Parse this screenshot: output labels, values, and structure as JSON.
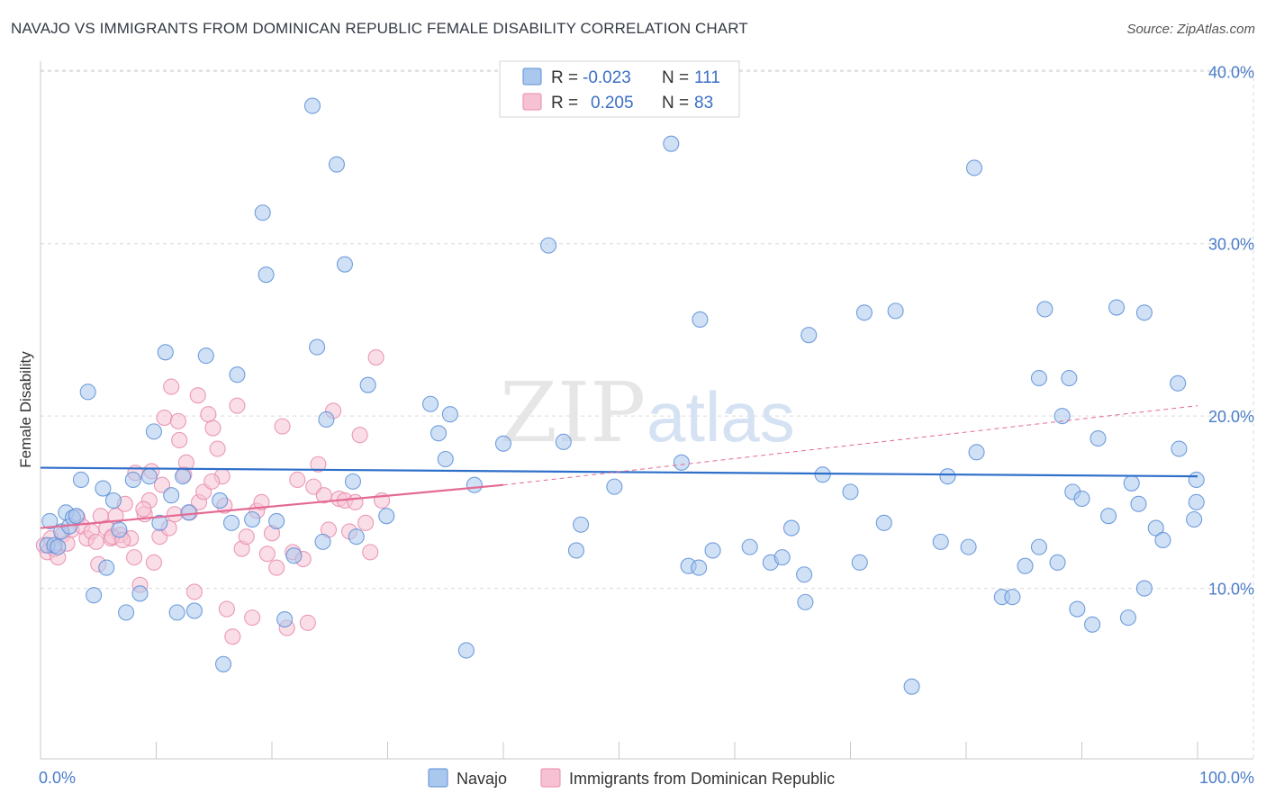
{
  "title": "NAVAJO VS IMMIGRANTS FROM DOMINICAN REPUBLIC FEMALE DISABILITY CORRELATION CHART",
  "source": "Source: ZipAtlas.com",
  "colors": {
    "navajo_fill": "#aac8ee",
    "navajo_stroke": "#5b8ed6",
    "navajo_line": "#2f6fca",
    "dom_fill": "#f6c2d3",
    "dom_stroke": "#e88aaa",
    "dom_line": "#e46a93",
    "grid": "#d9d9d9",
    "tick_label": "#4a7cc9"
  },
  "watermark": {
    "part1": "ZIP",
    "part2": "atlas"
  },
  "legend": {
    "rows": [
      {
        "r_label": "R =",
        "r_value": "-0.023",
        "n_label": "N =",
        "n_value": "111"
      },
      {
        "r_label": "R =",
        "r_value": "0.205",
        "n_label": "N =",
        "n_value": "83"
      }
    ]
  },
  "bottom_legend": [
    "Navajo",
    "Immigrants from Dominican Republic"
  ],
  "chart_data": {
    "type": "scatter",
    "title": "NAVAJO VS IMMIGRANTS FROM DOMINICAN REPUBLIC FEMALE DISABILITY CORRELATION CHART",
    "xlabel": "",
    "ylabel": "Female Disability",
    "xlim": [
      0,
      100
    ],
    "ylim": [
      0,
      42
    ],
    "x_tick_labels": [
      "0.0%",
      "100.0%"
    ],
    "y_ticks": [
      10,
      20,
      30,
      40
    ],
    "y_tick_labels": [
      "10.0%",
      "20.0%",
      "30.0%",
      "40.0%"
    ],
    "grid": true,
    "series": [
      {
        "name": "Navajo",
        "R": -0.023,
        "N": 111,
        "trend": {
          "x": [
            0,
            100
          ],
          "y": [
            17.0,
            16.5
          ]
        },
        "points": [
          [
            0.6,
            12.5
          ],
          [
            0.8,
            13.9
          ],
          [
            1.2,
            12.5
          ],
          [
            1.5,
            12.4
          ],
          [
            1.8,
            13.3
          ],
          [
            2.2,
            14.4
          ],
          [
            2.5,
            13.6
          ],
          [
            2.8,
            14.1
          ],
          [
            3.1,
            14.2
          ],
          [
            3.5,
            16.3
          ],
          [
            4.1,
            21.4
          ],
          [
            4.6,
            9.6
          ],
          [
            5.4,
            15.8
          ],
          [
            5.7,
            11.2
          ],
          [
            6.3,
            15.1
          ],
          [
            6.8,
            13.4
          ],
          [
            7.4,
            8.6
          ],
          [
            8.0,
            16.3
          ],
          [
            8.6,
            9.7
          ],
          [
            9.4,
            16.5
          ],
          [
            9.8,
            19.1
          ],
          [
            10.3,
            13.8
          ],
          [
            10.8,
            23.7
          ],
          [
            11.3,
            15.4
          ],
          [
            11.8,
            8.6
          ],
          [
            12.3,
            16.5
          ],
          [
            12.8,
            14.4
          ],
          [
            13.3,
            8.7
          ],
          [
            14.3,
            23.5
          ],
          [
            15.5,
            15.1
          ],
          [
            15.8,
            5.6
          ],
          [
            16.5,
            13.8
          ],
          [
            17.0,
            22.4
          ],
          [
            18.3,
            14.0
          ],
          [
            19.2,
            31.8
          ],
          [
            19.5,
            28.2
          ],
          [
            20.4,
            13.9
          ],
          [
            21.1,
            8.2
          ],
          [
            21.9,
            11.9
          ],
          [
            23.5,
            38.0
          ],
          [
            23.9,
            24.0
          ],
          [
            24.4,
            12.7
          ],
          [
            24.7,
            19.8
          ],
          [
            25.6,
            34.6
          ],
          [
            26.3,
            28.8
          ],
          [
            27.0,
            16.2
          ],
          [
            27.3,
            13.0
          ],
          [
            28.3,
            21.8
          ],
          [
            29.9,
            14.2
          ],
          [
            33.7,
            20.7
          ],
          [
            34.4,
            19.0
          ],
          [
            35.0,
            17.5
          ],
          [
            35.4,
            20.1
          ],
          [
            36.8,
            6.4
          ],
          [
            37.5,
            16.0
          ],
          [
            40.0,
            18.4
          ],
          [
            43.9,
            29.9
          ],
          [
            45.2,
            18.5
          ],
          [
            46.7,
            13.7
          ],
          [
            46.3,
            12.2
          ],
          [
            49.6,
            15.9
          ],
          [
            54.5,
            35.8
          ],
          [
            55.4,
            17.3
          ],
          [
            56.0,
            11.3
          ],
          [
            56.9,
            11.2
          ],
          [
            58.1,
            12.2
          ],
          [
            57.0,
            25.6
          ],
          [
            61.3,
            12.4
          ],
          [
            63.1,
            11.5
          ],
          [
            64.1,
            11.8
          ],
          [
            64.9,
            13.5
          ],
          [
            66.1,
            9.2
          ],
          [
            66.4,
            24.7
          ],
          [
            66.0,
            10.8
          ],
          [
            67.6,
            16.6
          ],
          [
            70.0,
            15.6
          ],
          [
            70.8,
            11.5
          ],
          [
            71.2,
            26.0
          ],
          [
            72.9,
            13.8
          ],
          [
            73.9,
            26.1
          ],
          [
            75.3,
            4.3
          ],
          [
            77.8,
            12.7
          ],
          [
            78.4,
            16.5
          ],
          [
            80.2,
            12.4
          ],
          [
            80.7,
            34.4
          ],
          [
            80.9,
            17.9
          ],
          [
            83.1,
            9.5
          ],
          [
            84.0,
            9.5
          ],
          [
            85.1,
            11.3
          ],
          [
            86.3,
            22.2
          ],
          [
            86.3,
            12.4
          ],
          [
            86.8,
            26.2
          ],
          [
            87.9,
            11.5
          ],
          [
            88.3,
            20.0
          ],
          [
            88.9,
            22.2
          ],
          [
            89.2,
            15.6
          ],
          [
            89.6,
            8.8
          ],
          [
            90.0,
            15.2
          ],
          [
            90.9,
            7.9
          ],
          [
            91.4,
            18.7
          ],
          [
            92.3,
            14.2
          ],
          [
            93.0,
            26.3
          ],
          [
            94.0,
            8.3
          ],
          [
            94.3,
            16.1
          ],
          [
            94.9,
            14.9
          ],
          [
            95.4,
            26.0
          ],
          [
            95.4,
            10.0
          ],
          [
            96.4,
            13.5
          ],
          [
            97.0,
            12.8
          ],
          [
            98.3,
            21.9
          ],
          [
            98.4,
            18.1
          ],
          [
            99.7,
            14.0
          ],
          [
            99.9,
            16.3
          ],
          [
            99.9,
            15.0
          ]
        ]
      },
      {
        "name": "Immigrants from Dominican Republic",
        "R": 0.205,
        "N": 83,
        "trend": {
          "x": [
            0,
            40
          ],
          "y": [
            13.5,
            16.0
          ]
        },
        "trend_extended": {
          "x": [
            40,
            100
          ],
          "y": [
            16.0,
            20.6
          ]
        },
        "points": [
          [
            0.3,
            12.5
          ],
          [
            0.6,
            12.1
          ],
          [
            0.9,
            12.9
          ],
          [
            1.2,
            12.3
          ],
          [
            1.5,
            11.8
          ],
          [
            1.9,
            13.1
          ],
          [
            2.3,
            12.6
          ],
          [
            2.7,
            13.4
          ],
          [
            3.2,
            14.1
          ],
          [
            3.6,
            13.6
          ],
          [
            4.0,
            12.9
          ],
          [
            4.4,
            13.3
          ],
          [
            4.8,
            12.7
          ],
          [
            5.2,
            14.2
          ],
          [
            5.7,
            13.5
          ],
          [
            6.1,
            12.9
          ],
          [
            6.5,
            14.2
          ],
          [
            6.9,
            13.1
          ],
          [
            7.3,
            14.9
          ],
          [
            7.8,
            12.9
          ],
          [
            8.2,
            16.7
          ],
          [
            8.6,
            10.2
          ],
          [
            9.0,
            14.3
          ],
          [
            9.4,
            15.1
          ],
          [
            9.8,
            11.5
          ],
          [
            10.3,
            13.0
          ],
          [
            10.7,
            19.9
          ],
          [
            11.1,
            13.5
          ],
          [
            11.6,
            14.3
          ],
          [
            12.0,
            18.6
          ],
          [
            12.4,
            16.6
          ],
          [
            12.9,
            14.4
          ],
          [
            13.3,
            9.8
          ],
          [
            13.7,
            15.0
          ],
          [
            14.1,
            15.6
          ],
          [
            14.5,
            20.1
          ],
          [
            14.9,
            19.3
          ],
          [
            15.3,
            18.1
          ],
          [
            15.7,
            16.5
          ],
          [
            16.1,
            8.8
          ],
          [
            16.6,
            7.2
          ],
          [
            17.0,
            20.6
          ],
          [
            17.4,
            12.3
          ],
          [
            17.8,
            13.0
          ],
          [
            18.3,
            8.3
          ],
          [
            18.7,
            14.5
          ],
          [
            19.1,
            15.0
          ],
          [
            19.6,
            12.0
          ],
          [
            20.0,
            13.2
          ],
          [
            20.4,
            11.2
          ],
          [
            20.9,
            19.4
          ],
          [
            21.3,
            7.7
          ],
          [
            21.8,
            12.1
          ],
          [
            22.2,
            16.3
          ],
          [
            22.7,
            11.7
          ],
          [
            23.1,
            8.0
          ],
          [
            23.6,
            15.9
          ],
          [
            24.0,
            17.2
          ],
          [
            24.5,
            15.4
          ],
          [
            24.9,
            13.4
          ],
          [
            25.3,
            20.3
          ],
          [
            25.8,
            15.2
          ],
          [
            26.3,
            15.1
          ],
          [
            26.7,
            13.3
          ],
          [
            27.2,
            15.0
          ],
          [
            27.6,
            18.9
          ],
          [
            28.1,
            13.8
          ],
          [
            28.5,
            12.1
          ],
          [
            29.0,
            23.4
          ],
          [
            29.5,
            15.1
          ],
          [
            5.0,
            11.4
          ],
          [
            6.2,
            13.0
          ],
          [
            7.1,
            12.8
          ],
          [
            8.1,
            11.8
          ],
          [
            8.9,
            14.6
          ],
          [
            9.6,
            16.8
          ],
          [
            10.5,
            16.0
          ],
          [
            11.3,
            21.7
          ],
          [
            11.9,
            19.7
          ],
          [
            12.6,
            17.3
          ],
          [
            13.6,
            21.2
          ],
          [
            14.8,
            16.2
          ],
          [
            15.9,
            14.8
          ]
        ]
      }
    ]
  }
}
